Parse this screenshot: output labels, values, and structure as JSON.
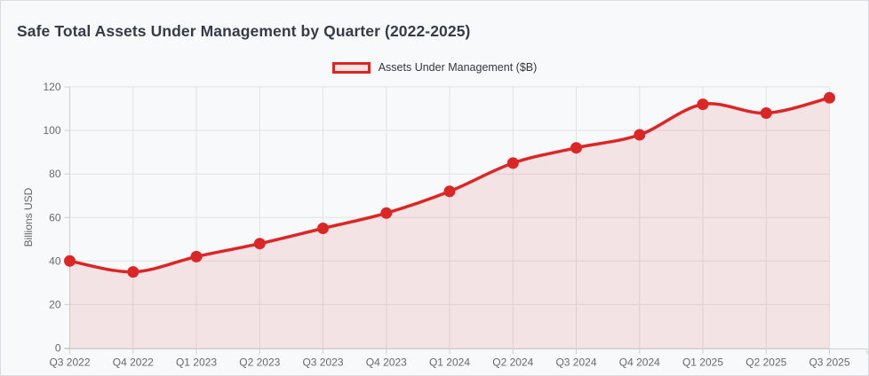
{
  "header": {
    "title": "Safe Total Assets Under Management by Quarter (2022-2025)"
  },
  "legend": {
    "label": "Assets Under Management ($B)"
  },
  "chart_data": {
    "type": "area",
    "title": "Safe Total Assets Under Management by Quarter (2022-2025)",
    "categories": [
      "Q3 2022",
      "Q4 2022",
      "Q1 2023",
      "Q2 2023",
      "Q3 2023",
      "Q4 2023",
      "Q1 2024",
      "Q2 2024",
      "Q3 2024",
      "Q4 2024",
      "Q1 2025",
      "Q2 2025",
      "Q3 2025"
    ],
    "series": [
      {
        "name": "Assets Under Management ($B)",
        "values": [
          40,
          35,
          42,
          48,
          55,
          62,
          72,
          85,
          92,
          98,
          112,
          108,
          115
        ]
      }
    ],
    "xlabel": "",
    "ylabel": "Billions USD",
    "ylim": [
      0,
      120
    ],
    "ytick_step": 20,
    "grid": true,
    "legend_position": "top-center",
    "colors": {
      "line": "#dc2626",
      "fill": "rgba(220,38,38,0.10)",
      "legend_fill": "#f7e3e3",
      "grid": "#e2e2e2",
      "axis": "#cfcfcf",
      "tick_text": "#65696e",
      "title_text": "#353b4a",
      "background": "#f8f9fa"
    }
  }
}
